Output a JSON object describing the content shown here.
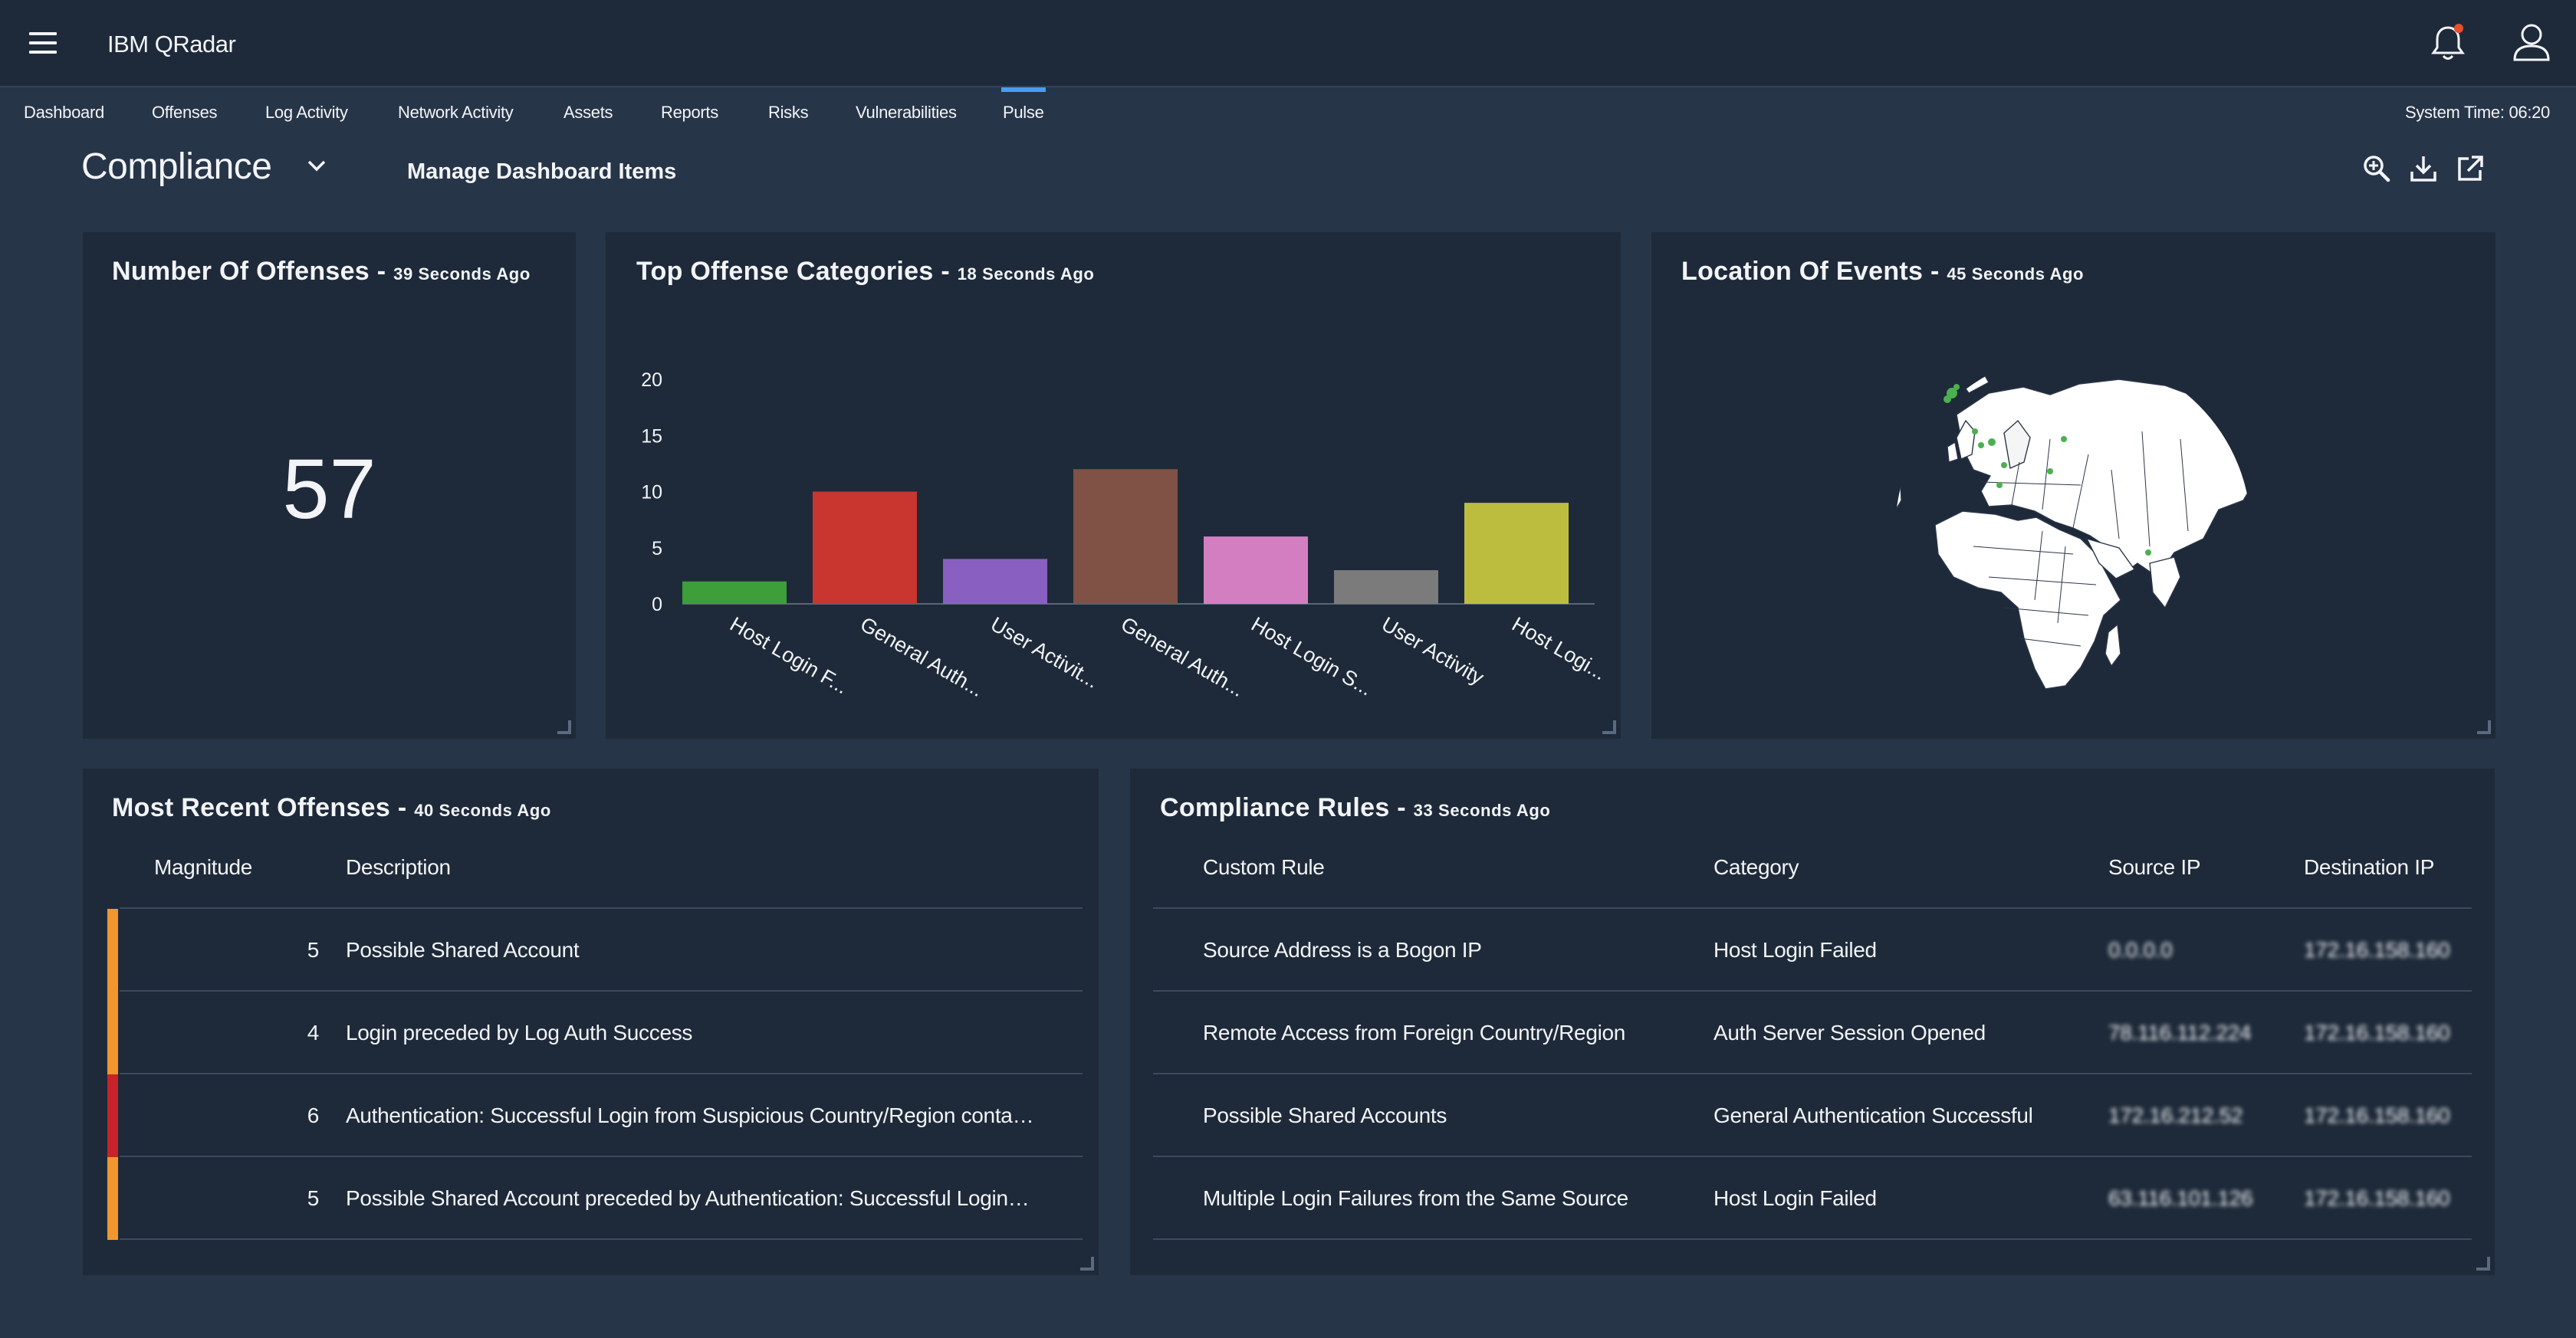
{
  "app": {
    "title": "IBM QRadar"
  },
  "nav": {
    "tabs": [
      {
        "label": "Dashboard"
      },
      {
        "label": "Offenses"
      },
      {
        "label": "Log Activity"
      },
      {
        "label": "Network Activity"
      },
      {
        "label": "Assets"
      },
      {
        "label": "Reports"
      },
      {
        "label": "Risks"
      },
      {
        "label": "Vulnerabilities"
      },
      {
        "label": "Pulse",
        "active": true
      }
    ],
    "system_time": "System Time: 06:20"
  },
  "dashboard": {
    "name": "Compliance",
    "manage_label": "Manage Dashboard Items",
    "tools": [
      "zoom-in-icon",
      "download-icon",
      "launch-icon"
    ]
  },
  "panels": {
    "offense_count": {
      "title": "Number Of Offenses - ",
      "ago": "39 Seconds Ago",
      "value": "57"
    },
    "top_categories": {
      "title": "Top Offense Categories - ",
      "ago": "18 Seconds Ago"
    },
    "location": {
      "title": "Location Of Events - ",
      "ago": "45 Seconds Ago"
    },
    "recent_offenses": {
      "title": "Most Recent Offenses - ",
      "ago": "40 Seconds Ago",
      "headers": {
        "magnitude": "Magnitude",
        "description": "Description"
      },
      "rows": [
        {
          "magnitude": "5",
          "description": "Possible Shared Account",
          "color": "#f0962e"
        },
        {
          "magnitude": "4",
          "description": "Login preceded by Log Auth Success",
          "color": "#f0962e"
        },
        {
          "magnitude": "6",
          "description": "Authentication: Successful Login from Suspicious Country/Region conta…",
          "color": "#c8222a"
        },
        {
          "magnitude": "5",
          "description": "Possible Shared Account preceded by Authentication: Successful Login…",
          "color": "#f0962e"
        }
      ]
    },
    "compliance_rules": {
      "title": "Compliance Rules - ",
      "ago": "33 Seconds Ago",
      "headers": {
        "rule": "Custom Rule",
        "category": "Category",
        "source": "Source IP",
        "dest": "Destination IP"
      },
      "rows": [
        {
          "rule": "Source Address is a Bogon IP",
          "category": "Host Login Failed",
          "source": "0.0.0.0",
          "dest": "172.16.158.160"
        },
        {
          "rule": "Remote Access from Foreign Country/Region",
          "category": "Auth Server Session Opened",
          "source": "78.116.112.224",
          "dest": "172.16.158.160"
        },
        {
          "rule": "Possible Shared Accounts",
          "category": "General Authentication Successful",
          "source": "172.16.212.52",
          "dest": "172.16.158.160"
        },
        {
          "rule": "Multiple Login Failures from the Same Source",
          "category": "Host Login Failed",
          "source": "63.116.101.126",
          "dest": "172.16.158.160"
        }
      ]
    }
  },
  "chart_data": {
    "type": "bar",
    "categories": [
      "Host Login F...",
      "General Auth...",
      "User Activit...",
      "General Auth...",
      "Host Login S...",
      "User Activity",
      "Host Logi..."
    ],
    "values": [
      2,
      10,
      4,
      12,
      6,
      3,
      9
    ],
    "colors": [
      "#3d9e3a",
      "#c9352f",
      "#8a5fc2",
      "#7f5245",
      "#d47ec2",
      "#7b7b7b",
      "#bcbd3f"
    ],
    "yticks": [
      0,
      5,
      10,
      15,
      20
    ],
    "ylim": [
      0,
      20
    ],
    "legend": false
  }
}
